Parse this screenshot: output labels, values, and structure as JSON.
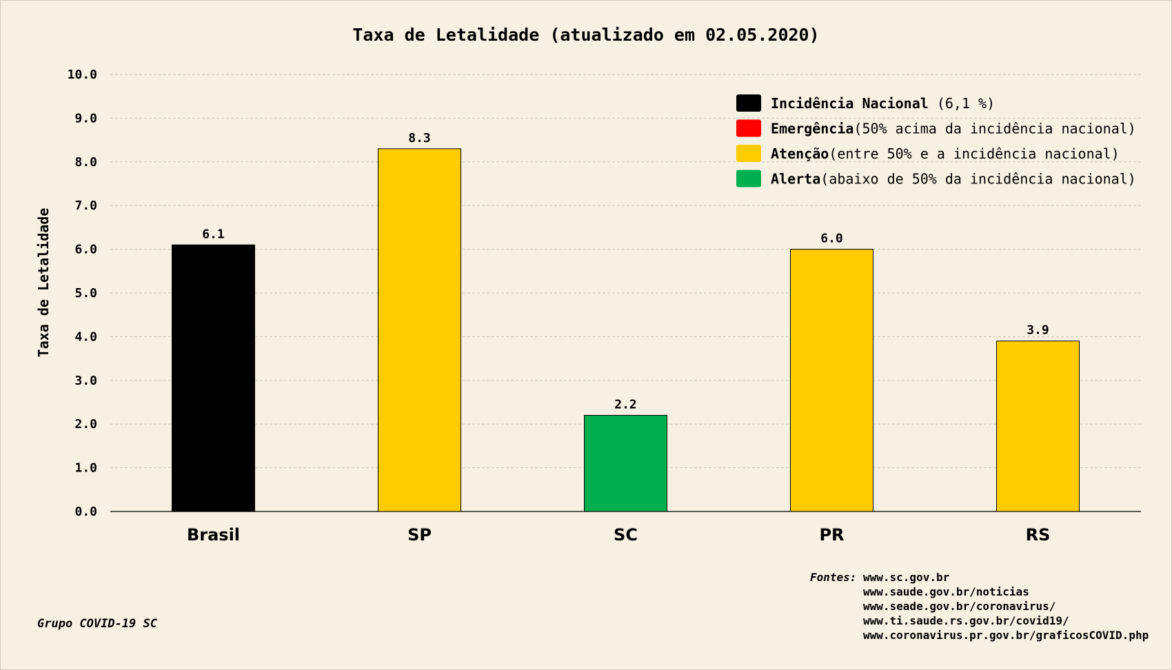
{
  "chart_data": {
    "type": "bar",
    "title": "Taxa de Letalidade (atualizado em 02.05.2020)",
    "xlabel": "",
    "ylabel": "Taxa de Letalidade",
    "ylim": [
      0,
      10
    ],
    "yticks": [
      "0.0",
      "1.0",
      "2.0",
      "3.0",
      "4.0",
      "5.0",
      "6.0",
      "7.0",
      "8.0",
      "9.0",
      "10.0"
    ],
    "grid": true,
    "legend_position": "top-right",
    "categories": [
      "Brasil",
      "SP",
      "SC",
      "PR",
      "RS"
    ],
    "values": [
      6.1,
      8.3,
      2.2,
      6.0,
      3.9
    ],
    "value_labels": [
      "6.1",
      "8.3",
      "2.2",
      "6.0",
      "3.9"
    ],
    "bar_colors": [
      "#000000",
      "#ffcc00",
      "#00b050",
      "#ffcc00",
      "#ffcc00"
    ],
    "legend": [
      {
        "bold": "Incidência Nacional",
        "text": " (6,1 %)",
        "color": "#000000"
      },
      {
        "bold": "Emergência",
        "text": "(50% acima da incidência nacional)",
        "color": "#ff0000"
      },
      {
        "bold": "Atenção",
        "text": "(entre 50% e a incidência nacional)",
        "color": "#ffcc00"
      },
      {
        "bold": "Alerta",
        "text": "(abaixo de 50% da incidência nacional)",
        "color": "#00b050"
      }
    ]
  },
  "footer": {
    "group": "Grupo COVID-19 SC",
    "sources_label": "Fontes:",
    "sources": [
      "www.sc.gov.br",
      "www.saude.gov.br/noticias",
      "www.seade.gov.br/coronavirus/",
      "www.ti.saude.rs.gov.br/covid19/",
      "www.coronavirus.pr.gov.br/graficosCOVID.php"
    ]
  }
}
